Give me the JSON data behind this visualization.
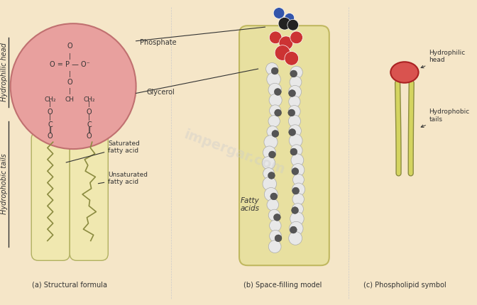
{
  "title": "",
  "background_color": "#f5e6c8",
  "panel_a_label": "(a) Structural formula",
  "panel_b_label": "(b) Space-filling model",
  "panel_c_label": "(c) Phospholipid symbol",
  "left_label_top": "Hydrophilic head",
  "left_label_bottom": "Hydrophobic tails",
  "annotations_a": {
    "phosphate": "Phosphate",
    "glycerol": "Glycerol",
    "saturated": "Saturated\nfatty acid",
    "unsaturated": "Unsaturated\nfatty acid"
  },
  "annotations_b": {
    "fatty_acids": "Fatty\nacids"
  },
  "annotations_c": {
    "head": "Hydrophilic\nhead",
    "tails": "Hydrophobic\ntails"
  },
  "head_color": "#d9534f",
  "head_light": "#e8a09e",
  "tail_color": "#c8c86e",
  "tail_light": "#e0e0a0",
  "phospholipid_bg": "#f0e8b0",
  "ball_white": "#e8e8e8",
  "ball_dark": "#404040",
  "ball_red": "#cc3333",
  "ball_blue": "#3355aa",
  "line_color": "#333333",
  "text_color": "#333333",
  "watermark": "impergar.com"
}
